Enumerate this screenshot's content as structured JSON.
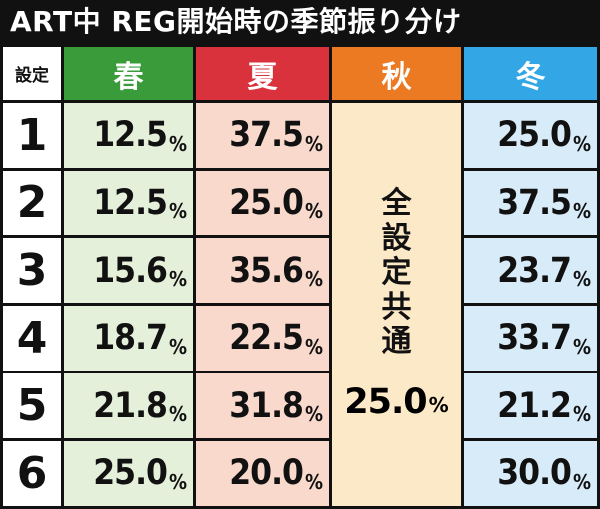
{
  "title": "ART中 REG開始時の季節振り分け",
  "header": {
    "setting": "設定",
    "spring": "春",
    "summer": "夏",
    "autumn": "秋",
    "winter": "冬"
  },
  "colors": {
    "spring_header": "#3a9b3a",
    "summer_header": "#d9323d",
    "autumn_header": "#ec7a23",
    "winter_header": "#33a7e6"
  },
  "rows": [
    {
      "setting": "1",
      "spring": "12.5",
      "summer": "37.5",
      "winter": "25.0"
    },
    {
      "setting": "2",
      "spring": "12.5",
      "summer": "25.0",
      "winter": "37.5"
    },
    {
      "setting": "3",
      "spring": "15.6",
      "summer": "35.6",
      "winter": "23.7"
    },
    {
      "setting": "4",
      "spring": "18.7",
      "summer": "22.5",
      "winter": "33.7"
    },
    {
      "setting": "5",
      "spring": "21.8",
      "summer": "31.8",
      "winter": "21.2"
    },
    {
      "setting": "6",
      "spring": "25.0",
      "summer": "20.0",
      "winter": "30.0"
    }
  ],
  "percent_sign": "%",
  "autumn_merged": {
    "label_chars": [
      "全",
      "設",
      "定",
      "共",
      "通"
    ],
    "value": "25.0"
  }
}
